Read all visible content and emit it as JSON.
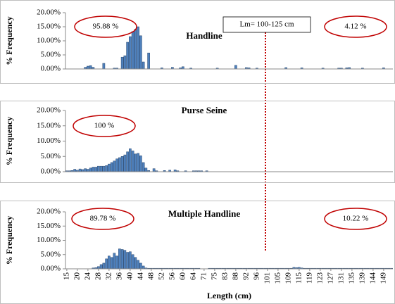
{
  "chart_data": [
    {
      "type": "bar",
      "title": "Handline",
      "ylabel": "% Frequency",
      "annotations": [
        "95.88 %",
        "4.12 %",
        "Lm= 100-125 cm"
      ],
      "color": "#4f81bd",
      "ylim": [
        0,
        20
      ],
      "yticks": [
        {
          "value": 0,
          "label": "0.00%"
        },
        {
          "value": 5,
          "label": "5.00%"
        },
        {
          "value": 10,
          "label": "10.00%"
        },
        {
          "value": 15,
          "label": "15.00%"
        },
        {
          "value": 20,
          "label": "20.00%"
        }
      ],
      "values": [
        0,
        0,
        0,
        0,
        0,
        0,
        0,
        0.6,
        1.0,
        1.2,
        0.6,
        0,
        0,
        0,
        2.0,
        0,
        0,
        0,
        0.3,
        0.3,
        0,
        4.2,
        4.7,
        9.5,
        11.5,
        13.3,
        14.1,
        15.0,
        11.8,
        2.5,
        0,
        5.7,
        0,
        0,
        0,
        0,
        0.4,
        0,
        0,
        0,
        0.6,
        0,
        0,
        0.4,
        0.8,
        0,
        0,
        0.3,
        0,
        0,
        0,
        0,
        0,
        0,
        0,
        0,
        0,
        0.3,
        0,
        0,
        0,
        0,
        0,
        0,
        1.3,
        0,
        0,
        0,
        0.5,
        0.4,
        0,
        0,
        0.3,
        0,
        0,
        0,
        0,
        0,
        0,
        0,
        0,
        0,
        0,
        0.5,
        0,
        0,
        0,
        0,
        0,
        0.4,
        0,
        0,
        0,
        0,
        0,
        0,
        0,
        0.3,
        0,
        0,
        0,
        0,
        0,
        0.3,
        0.3,
        0,
        0.4,
        0.5,
        0,
        0,
        0,
        0,
        0.3,
        0,
        0,
        0,
        0,
        0,
        0,
        0,
        0.4,
        0,
        0,
        0
      ]
    },
    {
      "type": "bar",
      "title": "Purse Seine",
      "ylabel": "% Frequency",
      "annotations": [
        "100 %"
      ],
      "color": "#4f81bd",
      "ylim": [
        0,
        20
      ],
      "yticks": [
        {
          "value": 0,
          "label": "0.00%"
        },
        {
          "value": 5,
          "label": "5.00%"
        },
        {
          "value": 10,
          "label": "10.00%"
        },
        {
          "value": 15,
          "label": "15.00%"
        },
        {
          "value": 20,
          "label": "20.00%"
        }
      ],
      "values": [
        0.3,
        0.3,
        0.4,
        0.8,
        0.5,
        0.9,
        0.7,
        1.0,
        0.8,
        1.2,
        1.5,
        1.5,
        1.8,
        1.8,
        1.8,
        2.0,
        2.5,
        3.0,
        3.5,
        4.2,
        4.6,
        5.0,
        5.5,
        6.5,
        7.5,
        6.8,
        5.8,
        6.0,
        5.2,
        3.0,
        1.2,
        0.4,
        0,
        1.0,
        0.3,
        0,
        0,
        0.4,
        0,
        0.5,
        0,
        0.6,
        0.3,
        0,
        0,
        0.3,
        0,
        0,
        0.3,
        0.3,
        0.3,
        0.3,
        0,
        0.3,
        0,
        0,
        0,
        0,
        0,
        0,
        0,
        0,
        0,
        0,
        0,
        0,
        0,
        0,
        0,
        0,
        0,
        0,
        0,
        0,
        0,
        0,
        0,
        0,
        0,
        0,
        0,
        0,
        0,
        0,
        0,
        0,
        0,
        0,
        0,
        0,
        0,
        0,
        0,
        0,
        0,
        0,
        0,
        0,
        0,
        0,
        0,
        0,
        0,
        0,
        0,
        0,
        0,
        0,
        0,
        0,
        0,
        0,
        0,
        0,
        0,
        0,
        0,
        0,
        0,
        0,
        0,
        0,
        0,
        0
      ]
    },
    {
      "type": "bar",
      "title": "Multiple Handline",
      "ylabel": "% Frequency",
      "xlabel": "Length (cm)",
      "annotations": [
        "89.78 %",
        "10.22 %"
      ],
      "color": "#4f81bd",
      "ylim": [
        0,
        20
      ],
      "yticks": [
        {
          "value": 0,
          "label": "0.00%"
        },
        {
          "value": 5,
          "label": "5.00%"
        },
        {
          "value": 10,
          "label": "10.00%"
        },
        {
          "value": 15,
          "label": "15.00%"
        },
        {
          "value": 20,
          "label": "20.00%"
        }
      ],
      "categories": [
        "15",
        null,
        null,
        null,
        "20",
        null,
        null,
        null,
        "24",
        null,
        null,
        null,
        "28",
        null,
        null,
        null,
        "32",
        null,
        null,
        null,
        "36",
        null,
        null,
        null,
        "40",
        null,
        null,
        null,
        "44",
        null,
        null,
        null,
        "48",
        null,
        null,
        null,
        "52",
        null,
        null,
        null,
        "56",
        null,
        null,
        null,
        "60",
        null,
        null,
        null,
        "64",
        null,
        null,
        null,
        "71",
        null,
        null,
        null,
        "75",
        null,
        null,
        null,
        "83",
        null,
        null,
        null,
        "88",
        null,
        null,
        null,
        "92",
        null,
        null,
        null,
        "96",
        null,
        null,
        null,
        "101",
        null,
        null,
        null,
        "105",
        null,
        null,
        null,
        "109",
        null,
        null,
        null,
        "115",
        null,
        null,
        null,
        "119",
        null,
        null,
        null,
        "123",
        null,
        null,
        null,
        "127",
        null,
        null,
        null,
        "131",
        null,
        null,
        null,
        "135",
        null,
        null,
        null,
        "139",
        null,
        null,
        null,
        "144",
        null,
        null,
        null,
        "149",
        null,
        null,
        null
      ],
      "values": [
        0,
        0,
        0,
        0,
        0,
        0,
        0,
        0,
        0,
        0,
        0.3,
        0.4,
        0.8,
        1.5,
        2.0,
        3.5,
        4.5,
        4.0,
        5.5,
        4.5,
        7.0,
        6.8,
        6.5,
        5.8,
        6.0,
        5.0,
        4.0,
        3.0,
        2.0,
        1.0,
        0.3,
        0.2,
        0.2,
        0.2,
        0.2,
        0.2,
        0.2,
        0.2,
        0.2,
        0.2,
        0.2,
        0.2,
        0.2,
        0.2,
        0.2,
        0.2,
        0.2,
        0.2,
        0.2,
        0.2,
        0.2,
        0,
        0,
        0,
        0.2,
        0.2,
        0.2,
        0.2,
        0.2,
        0.2,
        0.2,
        0.2,
        0.2,
        0.2,
        0.2,
        0.2,
        0.2,
        0.2,
        0.2,
        0.2,
        0.2,
        0.2,
        0.2,
        0.2,
        0.2,
        0.2,
        0.2,
        0.2,
        0.2,
        0.2,
        0.2,
        0.2,
        0.2,
        0.2,
        0.2,
        0.2,
        0.5,
        0.4,
        0.5,
        0.3,
        0.2,
        0.2,
        0.2,
        0.2,
        0.2,
        0.2,
        0.2,
        0.2,
        0.2,
        0.2,
        0.2,
        0.2,
        0.2,
        0.2,
        0.2,
        0.2,
        0.2,
        0.2,
        0.2,
        0.2,
        0.2,
        0.2,
        0.2,
        0.2,
        0.2,
        0.2,
        0.2,
        0.2,
        0.2,
        0.2,
        0.2,
        0.2,
        0.2,
        0.2
      ]
    }
  ]
}
